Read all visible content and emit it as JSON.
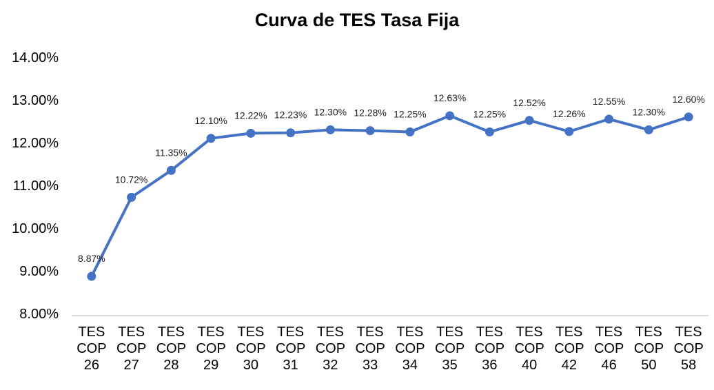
{
  "chart_data": {
    "type": "line",
    "title": "Curva de TES Tasa Fija",
    "xlabel": "",
    "ylabel": "",
    "categories": [
      [
        "TES",
        "COP",
        "26"
      ],
      [
        "TES",
        "COP",
        "27"
      ],
      [
        "TES",
        "COP",
        "28"
      ],
      [
        "TES",
        "COP",
        "29"
      ],
      [
        "TES",
        "COP",
        "30"
      ],
      [
        "TES",
        "COP",
        "31"
      ],
      [
        "TES",
        "COP",
        "32"
      ],
      [
        "TES",
        "COP",
        "33"
      ],
      [
        "TES",
        "COP",
        "34"
      ],
      [
        "TES",
        "COP",
        "35"
      ],
      [
        "TES",
        "COP",
        "36"
      ],
      [
        "TES",
        "COP",
        "40"
      ],
      [
        "TES",
        "COP",
        "42"
      ],
      [
        "TES",
        "COP",
        "46"
      ],
      [
        "TES",
        "COP",
        "50"
      ],
      [
        "TES",
        "COP",
        "58"
      ]
    ],
    "values": [
      8.87,
      10.72,
      11.35,
      12.1,
      12.22,
      12.23,
      12.3,
      12.28,
      12.25,
      12.63,
      12.25,
      12.52,
      12.26,
      12.55,
      12.3,
      12.6
    ],
    "data_labels": [
      "8.87%",
      "10.72%",
      "11.35%",
      "12.10%",
      "12.22%",
      "12.23%",
      "12.30%",
      "12.28%",
      "12.25%",
      "12.63%",
      "12.25%",
      "12.52%",
      "12.26%",
      "12.55%",
      "12.30%",
      "12.60%"
    ],
    "ylim": [
      8,
      14
    ],
    "yticks": [
      "8.00%",
      "9.00%",
      "10.00%",
      "11.00%",
      "12.00%",
      "13.00%",
      "14.00%"
    ],
    "grid": false,
    "legend": "none",
    "line_color": "#4472C4",
    "axis_color": "#D9D9D9"
  }
}
